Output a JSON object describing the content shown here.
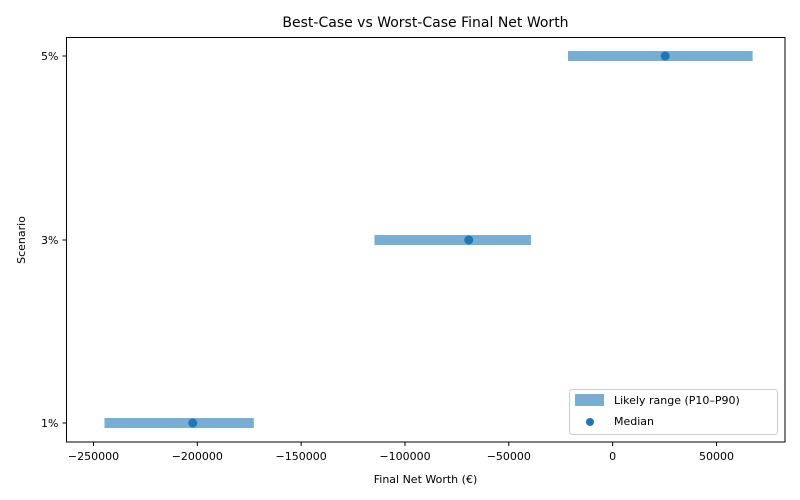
{
  "chart_data": {
    "type": "range-bar",
    "title": "Best-Case vs Worst-Case Final Net Worth",
    "xlabel": "Final Net Worth (€)",
    "ylabel": "Scenario",
    "categories": [
      "1%",
      "3%",
      "5%"
    ],
    "series": [
      {
        "name": "Likely range (P10–P90)",
        "kind": "range",
        "color": "#1f77b4",
        "alpha": 0.6,
        "p10": [
          -244700,
          -114700,
          -21500
        ],
        "p90": [
          -172800,
          -39300,
          67400
        ]
      },
      {
        "name": "Median",
        "kind": "scatter",
        "color": "#1f77b4",
        "values": [
          -202200,
          -69300,
          25300
        ]
      }
    ],
    "xlim": [
      -263000,
      83000
    ],
    "xticks": [
      -250000,
      -200000,
      -150000,
      -100000,
      -50000,
      0,
      50000
    ],
    "xtick_labels": [
      "−250000",
      "−200000",
      "−150000",
      "−100000",
      "−50000",
      "0",
      "50000"
    ],
    "grid": false,
    "legend_position": "lower right"
  }
}
